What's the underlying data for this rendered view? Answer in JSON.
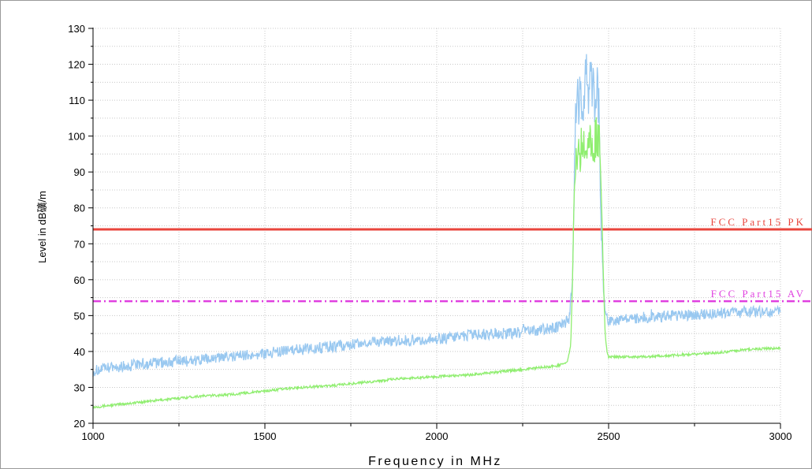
{
  "chart_data": {
    "type": "line",
    "title": "",
    "xlabel": "Frequency in MHz",
    "ylabel": "Level in dB礦/m",
    "xlim": [
      1000,
      3000
    ],
    "ylim": [
      20,
      130
    ],
    "x_ticks": [
      1000,
      1500,
      2000,
      2500,
      3000
    ],
    "y_ticks": [
      20,
      30,
      40,
      50,
      60,
      70,
      80,
      90,
      100,
      110,
      120,
      130
    ],
    "grid": true,
    "colors": {
      "peak_trace": "#99c8f0",
      "average_trace": "#90ee70",
      "pk_limit": "#e8453c",
      "av_limit": "#e040e0",
      "grid": "#c8c8c8"
    },
    "limit_lines": [
      {
        "name": "FCC Part15 PK",
        "value": 74,
        "color": "#e8453c",
        "style": "solid"
      },
      {
        "name": "FCC Part15 AV",
        "value": 54,
        "color": "#e040e0",
        "style": "dash-dot"
      }
    ],
    "series": [
      {
        "style": "noisy",
        "color": "#99c8f0",
        "x": [
          1000,
          1050,
          1100,
          1200,
          1300,
          1400,
          1500,
          1600,
          1700,
          1800,
          1900,
          2000,
          2100,
          2200,
          2300,
          2360,
          2385,
          2395,
          2400,
          2405,
          2410,
          2420,
          2430,
          2440,
          2450,
          2460,
          2470,
          2475,
          2480,
          2485,
          2490,
          2495,
          2500,
          2550,
          2600,
          2700,
          2800,
          2900,
          3000
        ],
        "y": [
          34.5,
          35.5,
          36,
          37,
          37.5,
          38.5,
          39.5,
          40.5,
          41.5,
          42.5,
          43,
          43.5,
          44.5,
          45,
          46,
          47,
          49,
          60,
          85,
          108,
          112,
          110,
          114,
          115,
          113,
          112,
          110,
          95,
          72,
          58,
          51,
          49,
          48.5,
          49,
          49.5,
          50,
          50.5,
          51,
          51
        ]
      },
      {
        "style": "smooth",
        "color": "#90ee70",
        "x": [
          1000,
          1100,
          1200,
          1300,
          1400,
          1500,
          1600,
          1700,
          1800,
          1900,
          2000,
          2100,
          2200,
          2300,
          2350,
          2380,
          2390,
          2395,
          2400,
          2410,
          2420,
          2430,
          2440,
          2450,
          2460,
          2470,
          2475,
          2480,
          2485,
          2490,
          2495,
          2500,
          2600,
          2700,
          2800,
          2900,
          3000
        ],
        "y": [
          24.5,
          25.5,
          26.5,
          27.5,
          28,
          29,
          30,
          30.5,
          31.5,
          32.5,
          33,
          33.5,
          34.5,
          35.5,
          36,
          37,
          42,
          60,
          85,
          95,
          97,
          100,
          101,
          100,
          99,
          98,
          95,
          80,
          60,
          45,
          40,
          38.5,
          38.5,
          39,
          39.5,
          40.5,
          41
        ]
      }
    ]
  }
}
